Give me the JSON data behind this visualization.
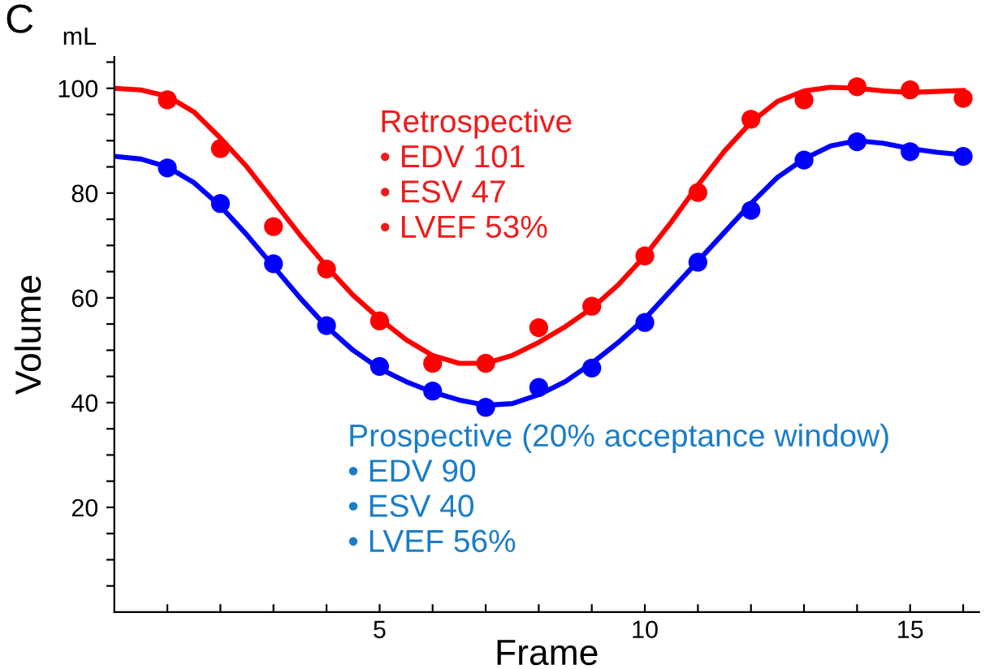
{
  "chart_data": {
    "type": "scatter",
    "xlabel": "Frame",
    "ylabel": "Volume",
    "annotations": [
      "C",
      "mL",
      "Retrospective\n• EDV 101\n• ESV 47\n• LVEF 53%",
      "Prospective (20% acceptance window)\n• EDV 90\n• ESV 40\n• LVEF 56%"
    ],
    "x": [
      1,
      2,
      3,
      4,
      5,
      6,
      7,
      8,
      9,
      10,
      11,
      12,
      13,
      14,
      15,
      16
    ],
    "series": [
      {
        "color": "#ff0000",
        "marker": "circle",
        "values": [
          97.8,
          88.5,
          73.6,
          65.5,
          55.6,
          47.5,
          47.5,
          54.3,
          58.4,
          68,
          80.1,
          94.1,
          97.8,
          100.3,
          99.7,
          98.1
        ]
      },
      {
        "color": "#0000ff",
        "marker": "circle",
        "values": [
          84.8,
          78,
          66.5,
          54.7,
          46.9,
          42.2,
          39.1,
          42.9,
          46.6,
          55.3,
          66.8,
          76.7,
          86.3,
          89.8,
          87.9,
          87
        ]
      },
      {
        "type": "line",
        "color": "#ff0000",
        "marker": "none",
        "line_style": "solid",
        "x": [
          0,
          0.5,
          1,
          1.5,
          2,
          2.5,
          3,
          3.5,
          4,
          4.5,
          5,
          5.5,
          6,
          6.5,
          7,
          7.5,
          8,
          8.5,
          9,
          9.5,
          10,
          10.5,
          11,
          11.5,
          12,
          12.5,
          13,
          13.5,
          14,
          14.5,
          15,
          15.5,
          16
        ],
        "values": [
          100,
          99.7,
          98.5,
          95.5,
          90.5,
          85,
          78.5,
          72,
          66,
          60.5,
          56,
          52,
          49,
          47.5,
          47.5,
          49,
          51.5,
          54.5,
          58,
          62.5,
          68,
          74.5,
          81.5,
          88,
          93.5,
          97.5,
          99.5,
          100.2,
          100,
          99.5,
          99.2,
          99.4,
          99.6
        ]
      },
      {
        "type": "line",
        "color": "#0000ff",
        "marker": "none",
        "line_style": "solid",
        "x": [
          0,
          0.5,
          1,
          1.5,
          2,
          2.5,
          3,
          3.5,
          4,
          4.5,
          5,
          5.5,
          6,
          6.5,
          7,
          7.5,
          8,
          8.5,
          9,
          9.5,
          10,
          10.5,
          11,
          11.5,
          12,
          12.5,
          13,
          13.5,
          14,
          14.5,
          15,
          15.5,
          16
        ],
        "values": [
          87,
          86.5,
          85,
          82,
          77.5,
          72,
          66,
          60,
          54.5,
          50,
          46.5,
          44,
          42,
          40.5,
          39.5,
          39.8,
          41.5,
          44,
          47.5,
          51.5,
          56,
          61.5,
          67,
          72.5,
          78,
          83,
          86.5,
          89,
          90,
          89.5,
          88.5,
          87.8,
          87.3
        ]
      }
    ],
    "xlim": [
      0,
      16.3
    ],
    "ylim": [
      0,
      106
    ],
    "xticks": [
      {
        "value": 1,
        "label": null
      },
      {
        "value": 2,
        "label": null
      },
      {
        "value": 3,
        "label": null
      },
      {
        "value": 4,
        "label": null
      },
      5,
      {
        "value": 6,
        "label": null
      },
      {
        "value": 7,
        "label": null
      },
      {
        "value": 8,
        "label": null
      },
      {
        "value": 9,
        "label": null
      },
      10,
      {
        "value": 11,
        "label": null
      },
      {
        "value": 12,
        "label": null
      },
      {
        "value": 13,
        "label": null
      },
      {
        "value": 14,
        "label": null
      },
      15,
      {
        "value": 16,
        "label": null
      }
    ],
    "yticks": [
      {
        "value": 5,
        "label": null
      },
      {
        "value": 10,
        "label": null
      },
      {
        "value": 15,
        "label": null
      },
      20,
      {
        "value": 25,
        "label": null
      },
      {
        "value": 30,
        "label": null
      },
      {
        "value": 35,
        "label": null
      },
      40,
      {
        "value": 45,
        "label": null
      },
      {
        "value": 50,
        "label": null
      },
      {
        "value": 55,
        "label": null
      },
      60,
      {
        "value": 65,
        "label": null
      },
      {
        "value": 70,
        "label": null
      },
      {
        "value": 75,
        "label": null
      },
      80,
      {
        "value": 85,
        "label": null
      },
      {
        "value": 90,
        "label": null
      },
      {
        "value": 95,
        "label": null
      },
      100,
      {
        "value": 105,
        "label": null
      }
    ],
    "grid": false,
    "legend": false
  }
}
